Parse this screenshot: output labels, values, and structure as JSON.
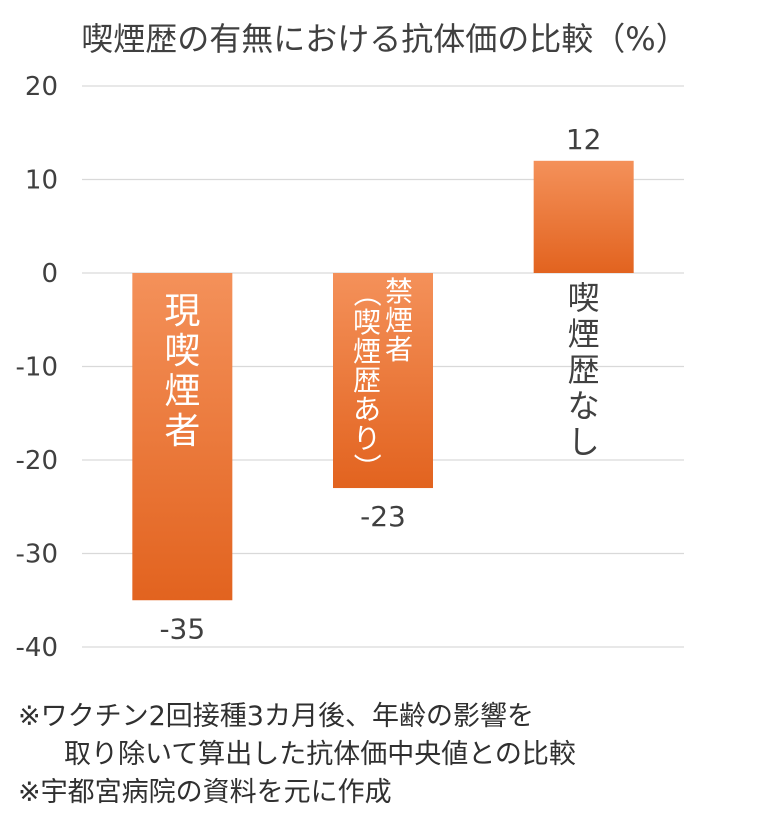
{
  "chart_data": {
    "type": "bar",
    "title": "喫煙歴の有無における抗体価の比較（%）",
    "categories": [
      "現喫煙者",
      "禁煙者\n（喫煙歴あり）",
      "喫煙歴なし"
    ],
    "bar_labels": [
      [
        "現",
        "喫",
        "煙",
        "者"
      ],
      [
        "禁煙者",
        "（喫煙歴あり）"
      ],
      [
        "喫",
        "煙",
        "歴",
        "な",
        "し"
      ]
    ],
    "values": [
      -35,
      -23,
      12
    ],
    "data_labels": [
      "-35",
      "-23",
      "12"
    ],
    "ylim": [
      -40,
      20
    ],
    "yticks": [
      20,
      10,
      0,
      -10,
      -20,
      -30,
      -40
    ],
    "ytick_labels": [
      "20",
      "10",
      "0",
      "-10",
      "-20",
      "-30",
      "-40"
    ],
    "grid": true,
    "colors": {
      "bar_top": "#F4915A",
      "bar_bottom": "#E2631F",
      "grid": "#D9D9D9",
      "inside_label": "#FFFFFF",
      "outside_label": "#404040"
    }
  },
  "notes": [
    "※ワクチン2回接種3カ月後、年齢の影響を",
    "取り除いて算出した抗体価中央値との比較",
    "※宇都宮病院の資料を元に作成"
  ]
}
